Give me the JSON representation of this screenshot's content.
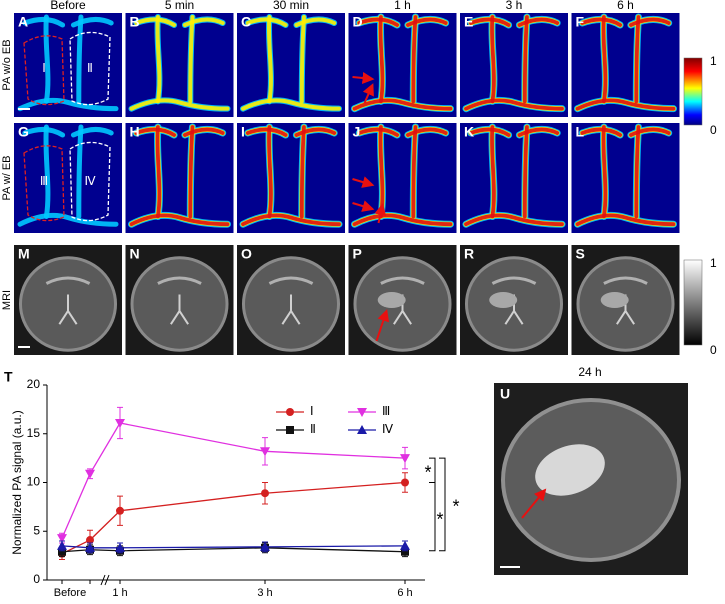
{
  "columns": [
    "Before",
    "5 min",
    "30 min",
    "1 h",
    "3 h",
    "6 h"
  ],
  "rows": [
    {
      "label": "PA w/o EB",
      "panels": [
        "A",
        "B",
        "C",
        "D",
        "E",
        "F"
      ]
    },
    {
      "label": "PA w/ EB",
      "panels": [
        "G",
        "H",
        "I",
        "J",
        "K",
        "L"
      ]
    },
    {
      "label": "MRI",
      "panels": [
        "M",
        "N",
        "O",
        "P",
        "R",
        "S"
      ]
    }
  ],
  "regions": [
    [
      "Ⅰ",
      "Ⅱ"
    ],
    [
      "Ⅲ",
      "Ⅳ"
    ]
  ],
  "colorbars": [
    {
      "max": 1,
      "min": 0
    },
    {
      "max": 1,
      "min": 0
    }
  ],
  "chart_data": {
    "type": "line",
    "panel_label": "T",
    "y_label": "Normalized PA signal (a.u.)",
    "categories": [
      "Before",
      null,
      "1 h",
      "3 h",
      "6 h"
    ],
    "ylim": [
      0,
      20
    ],
    "yticks": [
      0,
      5,
      10,
      15,
      20
    ],
    "series": [
      {
        "name": "Ⅰ",
        "color": "#d42020",
        "marker": "circle",
        "values": [
          2.7,
          4.1,
          7.1,
          8.9,
          10.0
        ],
        "errors": [
          0.6,
          1.0,
          1.5,
          1.1,
          1.0
        ]
      },
      {
        "name": "Ⅱ",
        "color": "#111111",
        "marker": "square",
        "values": [
          2.9,
          3.1,
          3.0,
          3.3,
          2.9
        ],
        "errors": [
          0.5,
          0.5,
          0.5,
          0.5,
          0.5
        ]
      },
      {
        "name": "Ⅲ",
        "color": "#e030e0",
        "marker": "triangle-down",
        "values": [
          4.3,
          10.9,
          16.1,
          13.2,
          12.5
        ],
        "errors": [
          0.5,
          0.5,
          1.6,
          1.4,
          1.1
        ]
      },
      {
        "name": "Ⅳ",
        "color": "#1a1aa8",
        "marker": "triangle-up",
        "values": [
          3.5,
          3.3,
          3.3,
          3.4,
          3.5
        ],
        "errors": [
          0.5,
          0.5,
          0.5,
          0.5,
          0.5
        ]
      }
    ],
    "annotations": [
      "*",
      "*",
      "*"
    ]
  },
  "panel_u": {
    "label": "U",
    "title": "24 h"
  }
}
